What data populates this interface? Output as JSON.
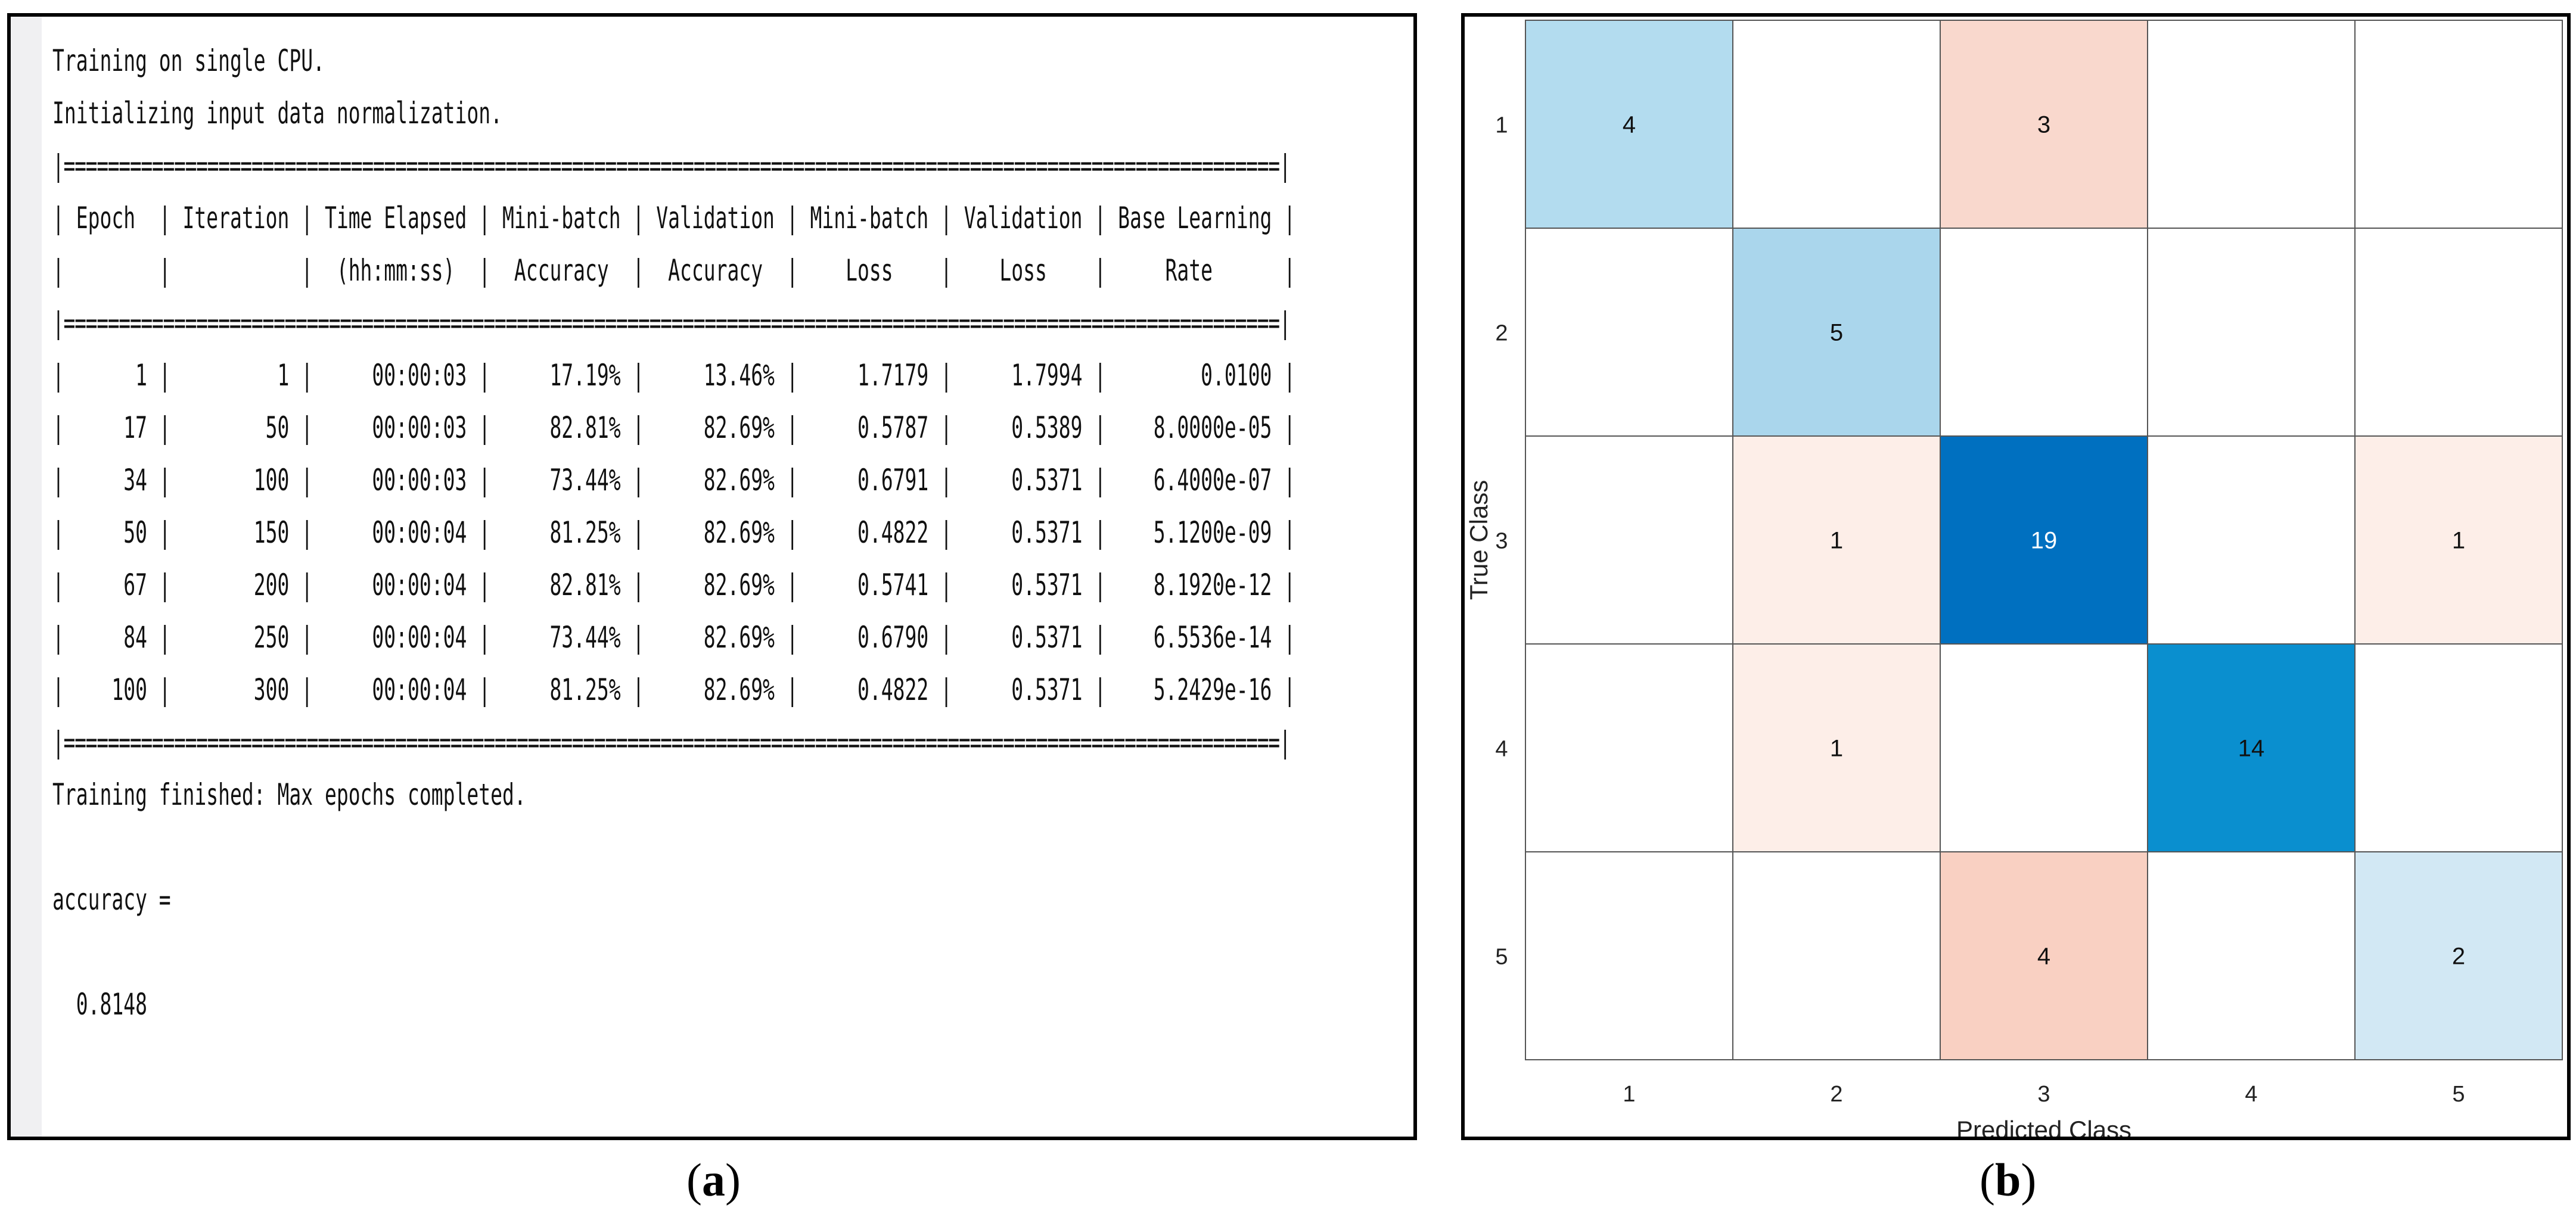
{
  "panel_a": {
    "lines_top": [
      "Training on single CPU.",
      "Initializing input data normalization."
    ],
    "separator": "|==============================================================================================================|",
    "header_row1": [
      "Epoch",
      "Iteration",
      "Time Elapsed",
      "Mini-batch",
      "Validation",
      "Mini-batch",
      "Validation",
      "Base Learning"
    ],
    "header_row2": [
      "",
      "",
      "(hh:mm:ss)",
      "Accuracy",
      "Accuracy",
      "Loss",
      "Loss",
      "Rate"
    ],
    "rows": [
      [
        "1",
        "1",
        "00:00:03",
        "17.19%",
        "13.46%",
        "1.7179",
        "1.7994",
        "0.0100"
      ],
      [
        "17",
        "50",
        "00:00:03",
        "82.81%",
        "82.69%",
        "0.5787",
        "0.5389",
        "8.0000e-05"
      ],
      [
        "34",
        "100",
        "00:00:03",
        "73.44%",
        "82.69%",
        "0.6791",
        "0.5371",
        "6.4000e-07"
      ],
      [
        "50",
        "150",
        "00:00:04",
        "81.25%",
        "82.69%",
        "0.4822",
        "0.5371",
        "5.1200e-09"
      ],
      [
        "67",
        "200",
        "00:00:04",
        "82.81%",
        "82.69%",
        "0.5741",
        "0.5371",
        "8.1920e-12"
      ],
      [
        "84",
        "250",
        "00:00:04",
        "73.44%",
        "82.69%",
        "0.6790",
        "0.5371",
        "6.5536e-14"
      ],
      [
        "100",
        "300",
        "00:00:04",
        "81.25%",
        "82.69%",
        "0.4822",
        "0.5371",
        "5.2429e-16"
      ]
    ],
    "finished": "Training finished: Max epochs completed.",
    "accuracy_label": "accuracy =",
    "accuracy_value": "0.8148"
  },
  "panel_b": {
    "xlabel": "Predicted Class",
    "ylabel": "True Class",
    "classes": [
      "1",
      "2",
      "3",
      "4",
      "5"
    ],
    "matrix": [
      [
        4,
        0,
        3,
        0,
        0
      ],
      [
        0,
        5,
        0,
        0,
        0
      ],
      [
        0,
        1,
        19,
        0,
        1
      ],
      [
        0,
        1,
        0,
        14,
        0
      ],
      [
        0,
        0,
        4,
        0,
        2
      ]
    ],
    "colors": {
      "diag_4": "#b3dcef",
      "diag_5": "#aad6ec",
      "diag_19": "#0070c0",
      "diag_14": "#0a8fcf",
      "diag_2": "#d2e8f4",
      "off_3": "#f9d8cd",
      "off_1": "#fdeee8",
      "off_4": "#f9d0c2",
      "grid": "#555555",
      "text_dark": "#111111",
      "text_light": "#ffffff"
    }
  },
  "captions": {
    "a": "a",
    "b": "b"
  }
}
